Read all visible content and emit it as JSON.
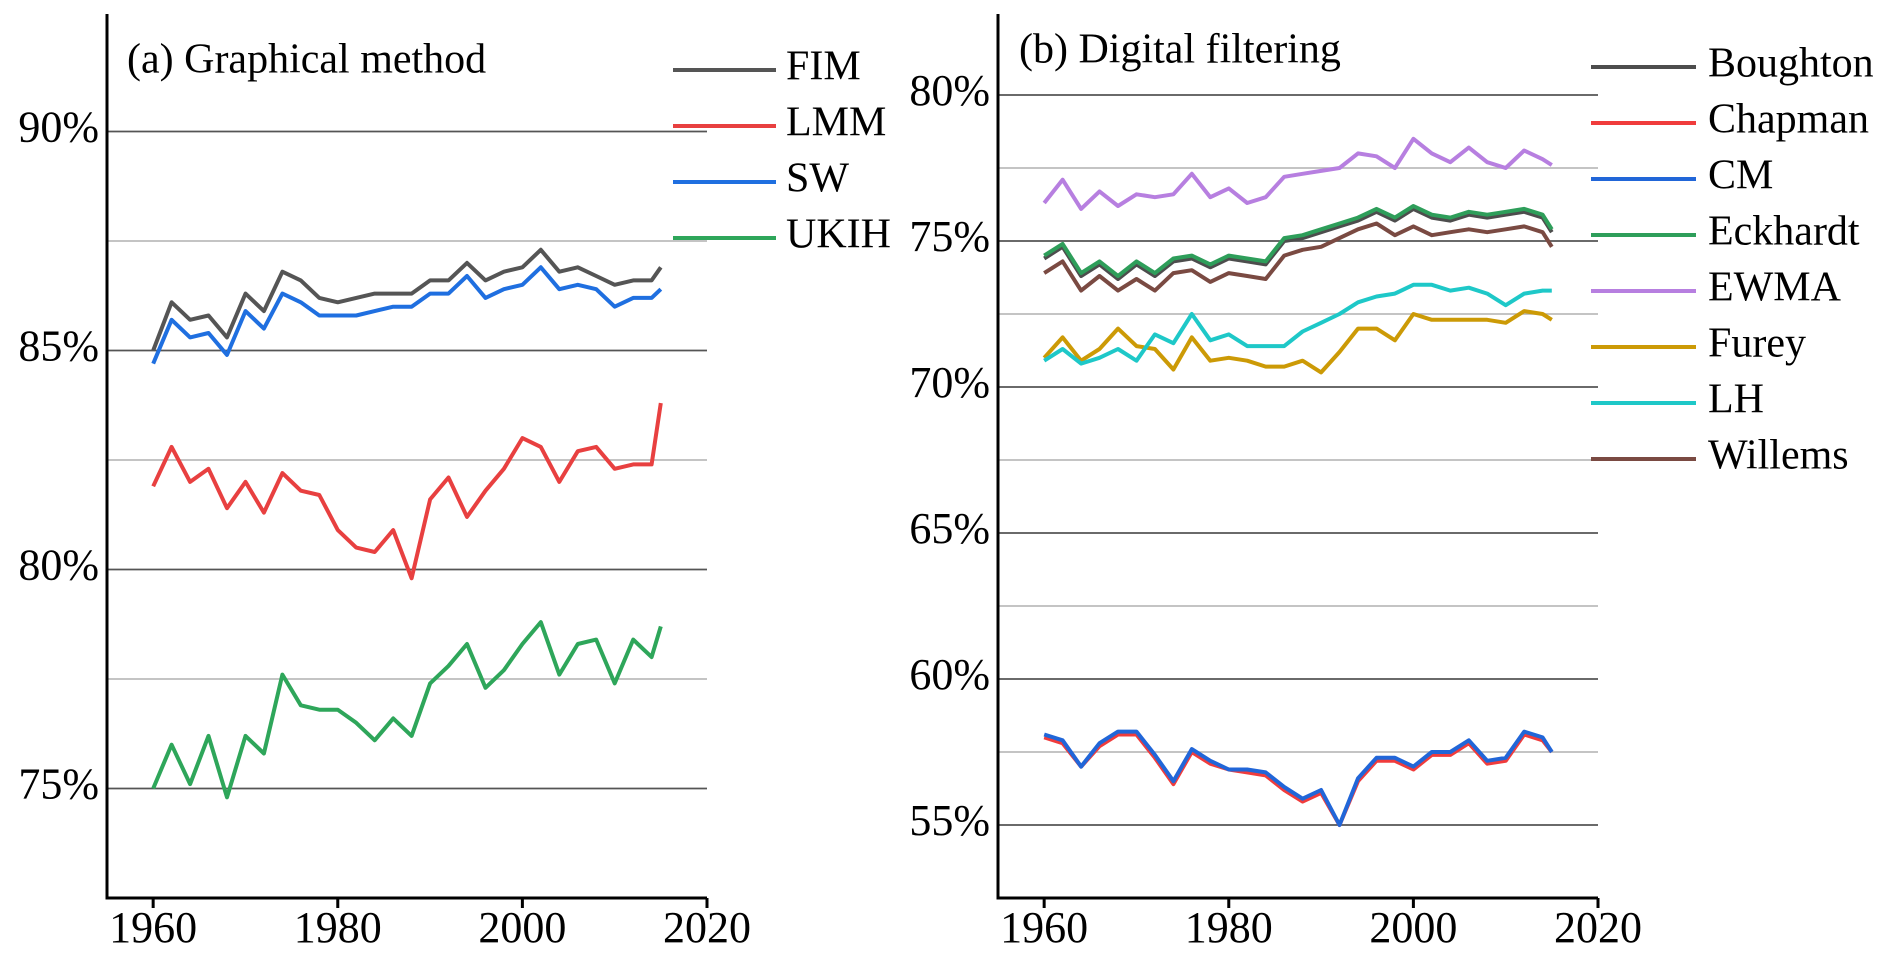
{
  "chart_data": [
    {
      "type": "line",
      "title": "(a) Graphical method",
      "legend": "upper right",
      "grid": true,
      "x": [
        1960,
        1962,
        1964,
        1966,
        1968,
        1970,
        1972,
        1974,
        1976,
        1978,
        1980,
        1982,
        1984,
        1986,
        1988,
        1990,
        1992,
        1994,
        1996,
        1998,
        2000,
        2002,
        2004,
        2006,
        2008,
        2010,
        2012,
        2014,
        2015
      ],
      "xlim": [
        1955,
        2020
      ],
      "xticks": [
        1960,
        1980,
        2000,
        2020
      ],
      "ylim": [
        72.5,
        92.5
      ],
      "yticks": [
        {
          "value": 75,
          "label": "75%"
        },
        {
          "value": 80,
          "label": "80%"
        },
        {
          "value": 85,
          "label": "85%"
        },
        {
          "value": 90,
          "label": "90%"
        }
      ],
      "minor_yticks": [
        77.5,
        82.5,
        87.5
      ],
      "series": [
        {
          "name": "FIM",
          "color": "#555555",
          "values": [
            85.0,
            86.1,
            85.7,
            85.8,
            85.3,
            86.3,
            85.9,
            86.8,
            86.6,
            86.2,
            86.1,
            86.2,
            86.3,
            86.3,
            86.3,
            86.6,
            86.6,
            87.0,
            86.6,
            86.8,
            86.9,
            87.3,
            86.8,
            86.9,
            86.7,
            86.5,
            86.6,
            86.6,
            86.9
          ]
        },
        {
          "name": "LMM",
          "color": "#e84040",
          "values": [
            81.9,
            82.8,
            82.0,
            82.3,
            81.4,
            82.0,
            81.3,
            82.2,
            81.8,
            81.7,
            80.9,
            80.5,
            80.4,
            80.9,
            79.8,
            81.6,
            82.1,
            81.2,
            81.8,
            82.3,
            83.0,
            82.8,
            82.0,
            82.7,
            82.8,
            82.3,
            82.4,
            82.4,
            83.8
          ]
        },
        {
          "name": "SW",
          "color": "#1f6fe0",
          "values": [
            84.7,
            85.7,
            85.3,
            85.4,
            84.9,
            85.9,
            85.5,
            86.3,
            86.1,
            85.8,
            85.8,
            85.8,
            85.9,
            86.0,
            86.0,
            86.3,
            86.3,
            86.7,
            86.2,
            86.4,
            86.5,
            86.9,
            86.4,
            86.5,
            86.4,
            86.0,
            86.2,
            86.2,
            86.4
          ]
        },
        {
          "name": "UKIH",
          "color": "#2ea65a",
          "values": [
            75.0,
            76.0,
            75.1,
            76.2,
            74.8,
            76.2,
            75.8,
            77.6,
            76.9,
            76.8,
            76.8,
            76.5,
            76.1,
            76.6,
            76.2,
            77.4,
            77.8,
            78.3,
            77.3,
            77.7,
            78.3,
            78.8,
            77.6,
            78.3,
            78.4,
            77.4,
            78.4,
            78.0,
            78.7
          ]
        }
      ]
    },
    {
      "type": "line",
      "title": "(b) Digital filtering",
      "legend": "upper right",
      "grid": true,
      "x": [
        1960,
        1962,
        1964,
        1966,
        1968,
        1970,
        1972,
        1974,
        1976,
        1978,
        1980,
        1982,
        1984,
        1986,
        1988,
        1990,
        1992,
        1994,
        1996,
        1998,
        2000,
        2002,
        2004,
        2006,
        2008,
        2010,
        2012,
        2014,
        2015
      ],
      "xlim": [
        1955,
        2020
      ],
      "xticks": [
        1960,
        1980,
        2000,
        2020
      ],
      "ylim": [
        52.5,
        82.5
      ],
      "yticks": [
        {
          "value": 55,
          "label": "55%"
        },
        {
          "value": 60,
          "label": "60%"
        },
        {
          "value": 65,
          "label": "65%"
        },
        {
          "value": 70,
          "label": "70%"
        },
        {
          "value": 75,
          "label": "75%"
        },
        {
          "value": 80,
          "label": "80%"
        }
      ],
      "minor_yticks": [
        57.5,
        62.5,
        67.5,
        72.5,
        77.5
      ],
      "series": [
        {
          "name": "Boughton",
          "color": "#4d4d4d",
          "values": [
            74.4,
            74.8,
            73.8,
            74.2,
            73.7,
            74.2,
            73.8,
            74.3,
            74.4,
            74.1,
            74.4,
            74.3,
            74.2,
            75.0,
            75.1,
            75.3,
            75.5,
            75.7,
            76.0,
            75.7,
            76.1,
            75.8,
            75.7,
            75.9,
            75.8,
            75.9,
            76.0,
            75.8,
            75.3
          ]
        },
        {
          "name": "Chapman",
          "color": "#f03c3c",
          "values": [
            58.0,
            57.8,
            57.0,
            57.7,
            58.1,
            58.1,
            57.3,
            56.4,
            57.5,
            57.1,
            56.9,
            56.8,
            56.7,
            56.2,
            55.8,
            56.1,
            55.0,
            56.5,
            57.2,
            57.2,
            56.9,
            57.4,
            57.4,
            57.8,
            57.1,
            57.2,
            58.1,
            57.9,
            57.5
          ]
        },
        {
          "name": "CM",
          "color": "#2166d8",
          "values": [
            58.1,
            57.9,
            57.0,
            57.8,
            58.2,
            58.2,
            57.4,
            56.5,
            57.6,
            57.2,
            56.9,
            56.9,
            56.8,
            56.3,
            55.9,
            56.2,
            55.0,
            56.6,
            57.3,
            57.3,
            57.0,
            57.5,
            57.5,
            57.9,
            57.2,
            57.3,
            58.2,
            58.0,
            57.5
          ]
        },
        {
          "name": "Eckhardt",
          "color": "#2e9e5a",
          "values": [
            74.5,
            74.9,
            73.9,
            74.3,
            73.8,
            74.3,
            73.9,
            74.4,
            74.5,
            74.2,
            74.5,
            74.4,
            74.3,
            75.1,
            75.2,
            75.4,
            75.6,
            75.8,
            76.1,
            75.8,
            76.2,
            75.9,
            75.8,
            76.0,
            75.9,
            76.0,
            76.1,
            75.9,
            75.4
          ]
        },
        {
          "name": "EWMA",
          "color": "#b77fe0",
          "values": [
            76.3,
            77.1,
            76.1,
            76.7,
            76.2,
            76.6,
            76.5,
            76.6,
            77.3,
            76.5,
            76.8,
            76.3,
            76.5,
            77.2,
            77.3,
            77.4,
            77.5,
            78.0,
            77.9,
            77.5,
            78.5,
            78.0,
            77.7,
            78.2,
            77.7,
            77.5,
            78.1,
            77.8,
            77.6
          ]
        },
        {
          "name": "Furey",
          "color": "#cc9a06",
          "values": [
            71.0,
            71.7,
            70.9,
            71.3,
            72.0,
            71.4,
            71.3,
            70.6,
            71.7,
            70.9,
            71.0,
            70.9,
            70.7,
            70.7,
            70.9,
            70.5,
            71.2,
            72.0,
            72.0,
            71.6,
            72.5,
            72.3,
            72.3,
            72.3,
            72.3,
            72.2,
            72.6,
            72.5,
            72.3
          ]
        },
        {
          "name": "LH",
          "color": "#1ec8c8",
          "values": [
            70.9,
            71.3,
            70.8,
            71.0,
            71.3,
            70.9,
            71.8,
            71.5,
            72.5,
            71.6,
            71.8,
            71.4,
            71.4,
            71.4,
            71.9,
            72.2,
            72.5,
            72.9,
            73.1,
            73.2,
            73.5,
            73.5,
            73.3,
            73.4,
            73.2,
            72.8,
            73.2,
            73.3,
            73.3
          ]
        },
        {
          "name": "Willems",
          "color": "#7a4a42",
          "values": [
            73.9,
            74.3,
            73.3,
            73.8,
            73.3,
            73.7,
            73.3,
            73.9,
            74.0,
            73.6,
            73.9,
            73.8,
            73.7,
            74.5,
            74.7,
            74.8,
            75.1,
            75.4,
            75.6,
            75.2,
            75.5,
            75.2,
            75.3,
            75.4,
            75.3,
            75.4,
            75.5,
            75.3,
            74.8
          ]
        }
      ]
    }
  ]
}
